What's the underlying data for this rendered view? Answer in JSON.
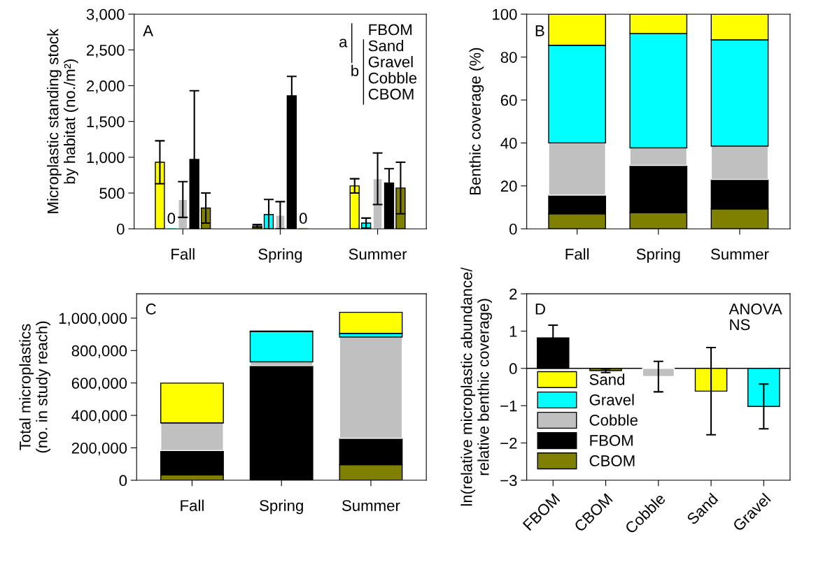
{
  "chart_data": [
    {
      "type": "bar",
      "ylabel": "Microplastic standing stock\nby habitat (no./m²)",
      "categories": [
        "Fall",
        "Spring",
        "Summer"
      ],
      "annotations": [
        "A",
        "a",
        "b",
        "FBOM",
        "Sand",
        "Gravel",
        "Cobble",
        "CBOM"
      ],
      "ylim": [
        0,
        3000
      ],
      "yticks": [
        0,
        500,
        {
          "value": 1000,
          "label": "1,000"
        },
        {
          "value": 1500,
          "label": "1,500"
        },
        {
          "value": 2000,
          "label": "2,000"
        },
        {
          "value": 2500,
          "label": "2,500"
        },
        {
          "value": 3000,
          "label": "3,000"
        }
      ],
      "grid": false,
      "legend": false,
      "series": [
        {
          "color": "#ffff00",
          "values": [
            930,
            40,
            600
          ],
          "errors": [
            300,
            20,
            100
          ]
        },
        {
          "color": "#00ffff",
          "values": [
            0,
            200,
            80
          ],
          "errors": [
            null,
            210,
            70
          ],
          "value_labels": [
            "0",
            null,
            null
          ]
        },
        {
          "color": "#c0c0c0",
          "values": [
            410,
            190,
            700
          ],
          "errors": [
            250,
            190,
            360
          ]
        },
        {
          "color": "#000000",
          "values": [
            970,
            1860,
            640
          ],
          "errors": [
            960,
            270,
            200
          ]
        },
        {
          "color": "#808000",
          "values": [
            290,
            0,
            570
          ],
          "errors": [
            210,
            null,
            360
          ],
          "value_labels": [
            null,
            "0",
            null
          ]
        }
      ]
    },
    {
      "type": "bar",
      "stacked": true,
      "ylabel": "Benthic coverage (%)",
      "categories": [
        "Fall",
        "Spring",
        "Summer"
      ],
      "annotations": [
        "B"
      ],
      "ylim": [
        0,
        100
      ],
      "yticks": [
        0,
        20,
        40,
        60,
        80,
        100
      ],
      "grid": false,
      "legend": false,
      "series": [
        {
          "color": "#808000",
          "values": [
            7,
            7.5,
            9.3
          ]
        },
        {
          "color": "#000000",
          "values": [
            8.7,
            22,
            13.7
          ]
        },
        {
          "color": "#c0c0c0",
          "values": [
            24.3,
            8.2,
            15.5
          ]
        },
        {
          "color": "#00ffff",
          "values": [
            45.5,
            53.3,
            49.5
          ]
        },
        {
          "color": "#ffff00",
          "values": [
            14.5,
            9,
            12
          ]
        }
      ]
    },
    {
      "type": "bar",
      "stacked": true,
      "ylabel": "Total microplastics\n(no. in study reach)",
      "categories": [
        "Fall",
        "Spring",
        "Summer"
      ],
      "annotations": [
        "C"
      ],
      "ylim": [
        0,
        1150000
      ],
      "yticks": [
        0,
        {
          "value": 200000,
          "label": "200,000"
        },
        {
          "value": 400000,
          "label": "400,000"
        },
        {
          "value": 600000,
          "label": "600,000"
        },
        {
          "value": 800000,
          "label": "800,000"
        },
        {
          "value": 1000000,
          "label": "1,000,000"
        }
      ],
      "grid": false,
      "legend": false,
      "series": [
        {
          "color": "#808000",
          "values": [
            33000,
            0,
            96000
          ]
        },
        {
          "color": "#000000",
          "values": [
            150000,
            707000,
            163000
          ]
        },
        {
          "color": "#c0c0c0",
          "values": [
            171000,
            23000,
            624000
          ]
        },
        {
          "color": "#00ffff",
          "values": [
            0,
            187000,
            23000
          ]
        },
        {
          "color": "#ffff00",
          "values": [
            245000,
            3000,
            130000
          ]
        }
      ]
    },
    {
      "type": "bar",
      "ylabel": "ln(relative microplastic abundance/\nrelative benthic coverage)",
      "categories": [
        "FBOM",
        "CBOM",
        "Cobble",
        "Sand",
        "Gravel"
      ],
      "annotations": [
        "D",
        "ANOVA\nNS"
      ],
      "ylim": [
        -3,
        2
      ],
      "yticks": [
        {
          "value": -3,
          "label": "−3"
        },
        {
          "value": -2,
          "label": "−2"
        },
        {
          "value": -1,
          "label": "−1"
        },
        0,
        1,
        2
      ],
      "grid": false,
      "legend": "bottom left",
      "ref_lines": [
        {
          "axis": "y",
          "value": 0,
          "color": "#000000"
        }
      ],
      "series": [
        {
          "name": "Sand",
          "color": "#ffff00",
          "values": [
            null,
            null,
            null,
            -0.61,
            null
          ],
          "errors": [
            null,
            null,
            null,
            1.17,
            null
          ]
        },
        {
          "name": "Gravel",
          "color": "#00ffff",
          "values": [
            null,
            null,
            null,
            null,
            -1.02
          ],
          "errors": [
            null,
            null,
            null,
            null,
            0.6
          ]
        },
        {
          "name": "Cobble",
          "color": "#c0c0c0",
          "values": [
            null,
            null,
            -0.22,
            null,
            null
          ],
          "errors": [
            null,
            null,
            0.41,
            null,
            null
          ]
        },
        {
          "name": "FBOM",
          "color": "#000000",
          "values": [
            0.82,
            null,
            null,
            null,
            null
          ],
          "errors": [
            0.34,
            null,
            null,
            null,
            null
          ]
        },
        {
          "name": "CBOM",
          "color": "#808000",
          "values": [
            null,
            -0.06,
            null,
            null,
            null
          ],
          "errors": [
            null,
            0.05,
            null,
            null,
            null
          ]
        }
      ]
    }
  ]
}
